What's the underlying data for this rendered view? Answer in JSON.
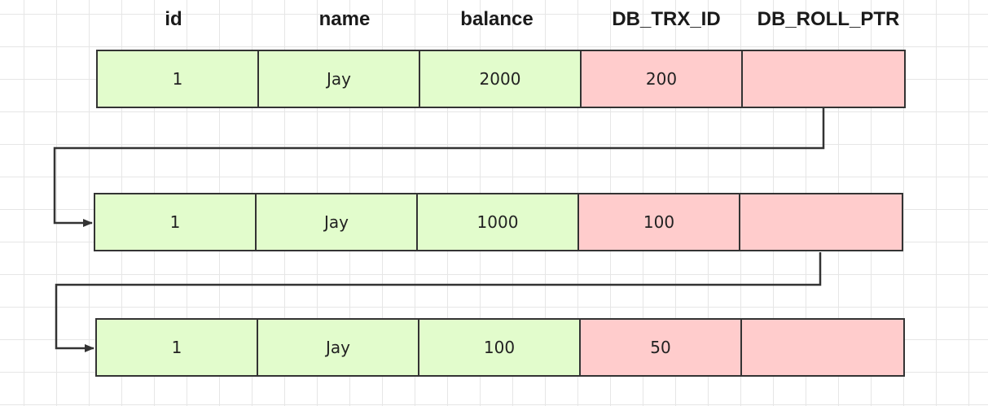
{
  "headers": [
    "id",
    "name",
    "balance",
    "DB_TRX_ID",
    "DB_ROLL_PTR"
  ],
  "colors": {
    "data_fill": "#e2fccc",
    "meta_fill": "#ffcccc",
    "stroke": "#333333"
  },
  "records": [
    {
      "id": "1",
      "name": "Jay",
      "balance": "2000",
      "trx_id": "200",
      "roll_ptr": ""
    },
    {
      "id": "1",
      "name": "Jay",
      "balance": "1000",
      "trx_id": "100",
      "roll_ptr": ""
    },
    {
      "id": "1",
      "name": "Jay",
      "balance": "100",
      "trx_id": "50",
      "roll_ptr": ""
    }
  ]
}
